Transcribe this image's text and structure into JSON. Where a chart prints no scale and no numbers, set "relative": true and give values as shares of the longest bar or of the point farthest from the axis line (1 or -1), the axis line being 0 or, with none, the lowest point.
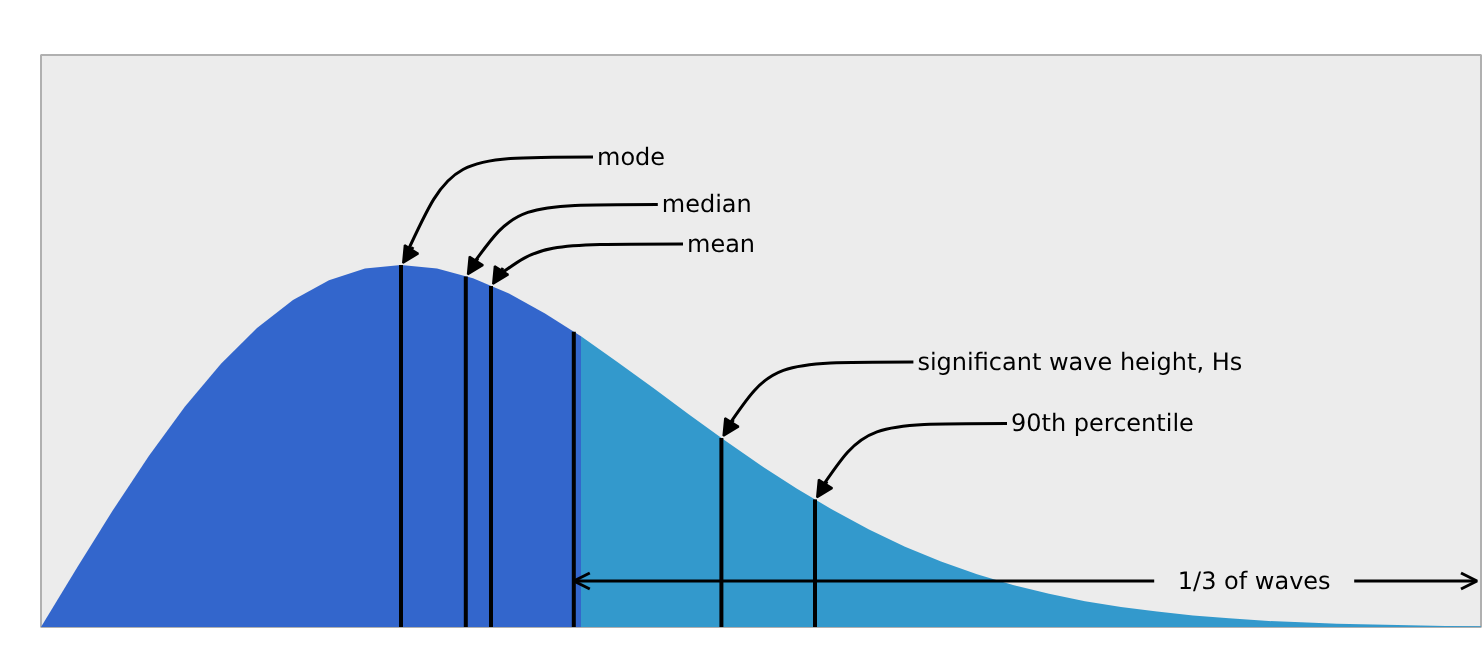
{
  "chart_data": {
    "type": "area",
    "relative": true,
    "categories": [
      null,
      null,
      null,
      null,
      null,
      null,
      null,
      null,
      null,
      null,
      null,
      null,
      null,
      null,
      null,
      null,
      null,
      null,
      null,
      null,
      null,
      null,
      null,
      null,
      null,
      null,
      null,
      null,
      null,
      null,
      null,
      null,
      null,
      null,
      null,
      null,
      null,
      null,
      null,
      null,
      null
    ],
    "series": [
      {
        "color": "#3366cc",
        "values": [
          0,
          0.164,
          0.323,
          0.473,
          0.609,
          0.727,
          0.826,
          0.903,
          0.958,
          0.99,
          1,
          0.99,
          0.963,
          0.921,
          0.866,
          0.803,
          null,
          null,
          null,
          null,
          null,
          null,
          null,
          null,
          null,
          null,
          null,
          null,
          null,
          null,
          null,
          null,
          null,
          null,
          null,
          null,
          null,
          null,
          null,
          null,
          null
        ]
      },
      {
        "color": "#3399cc",
        "values": [
          null,
          null,
          null,
          null,
          null,
          null,
          null,
          null,
          null,
          null,
          null,
          null,
          null,
          null,
          null,
          0.803,
          0.733,
          0.661,
          0.587,
          0.515,
          0.446,
          0.382,
          0.323,
          0.269,
          0.222,
          0.181,
          0.146,
          0.116,
          0.092,
          0.071,
          0.055,
          0.043,
          0.032,
          0.024,
          0.017,
          0.013,
          0.009,
          0.007,
          0.005,
          0.003,
          0.002
        ]
      }
    ],
    "annotations": [
      "mode",
      "median",
      "mean",
      "significant wave height, Hs",
      "90th percentile",
      "1/3 of waves"
    ]
  }
}
